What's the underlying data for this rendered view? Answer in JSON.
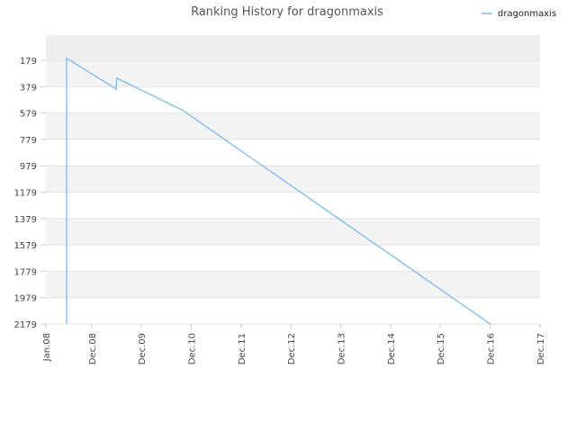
{
  "chart_data": {
    "type": "line",
    "title": "Ranking History for dragonmaxis",
    "xlabel": "",
    "ylabel": "",
    "x_ticks": [
      "Jan.08",
      "Dec.08",
      "Dec.09",
      "Dec.10",
      "Dec.11",
      "Dec.12",
      "Dec.13",
      "Dec.14",
      "Dec.15",
      "Dec.16",
      "Dec.17"
    ],
    "y_ticks": [
      179,
      379,
      579,
      779,
      979,
      1179,
      1379,
      1579,
      1779,
      1979,
      2179
    ],
    "ylim": [
      2179,
      0
    ],
    "y_inverted": true,
    "grid": "alternating horizontal bands",
    "legend_position": "top-right",
    "series": [
      {
        "name": "dragonmaxis",
        "color": "#7cb9f0",
        "points": [
          [
            "2008-06-01",
            2179
          ],
          [
            "2008-06-01",
            164
          ],
          [
            "2009-05-20",
            389
          ],
          [
            "2009-05-28",
            399
          ],
          [
            "2009-06-03",
            314
          ],
          [
            "2010-10-01",
            559
          ],
          [
            "2016-12-01",
            2179
          ]
        ]
      }
    ]
  }
}
